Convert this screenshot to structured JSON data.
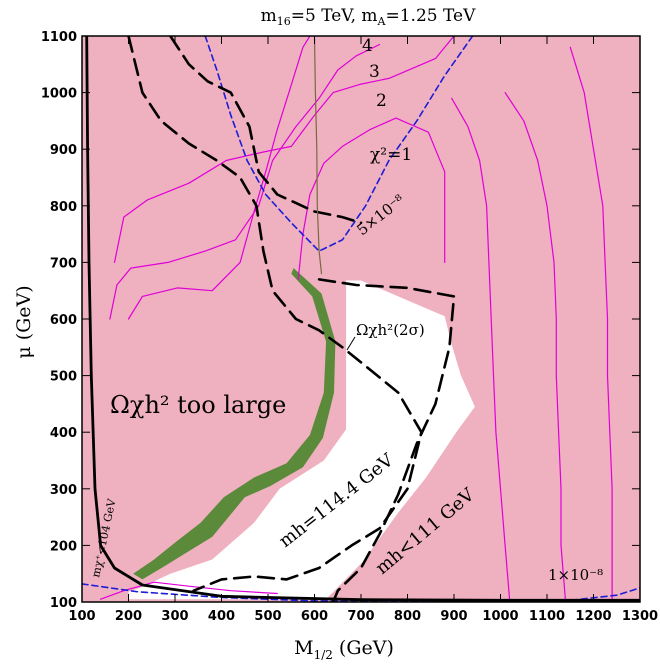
{
  "chart_data": {
    "type": "contour",
    "title": "m16=5 TeV,  mA=1.25 TeV",
    "title_parts": {
      "m16": "m",
      "m16_sub": "16",
      "m16_val": "=5 TeV,  ",
      "mA": "m",
      "mA_sub": "A",
      "mA_val": "=1.25 TeV"
    },
    "xlabel": "M1/2 (GeV)",
    "xlabel_parts": {
      "main": "M",
      "sub": "1/2",
      "unit": " (GeV)"
    },
    "ylabel": "μ (GeV)",
    "xlim": [
      100,
      1300
    ],
    "ylim": [
      100,
      1100
    ],
    "x_ticks": [
      100,
      200,
      300,
      400,
      500,
      600,
      700,
      800,
      900,
      1000,
      1100,
      1200,
      1300
    ],
    "y_ticks": [
      100,
      200,
      300,
      400,
      500,
      600,
      700,
      800,
      900,
      1000,
      1100
    ],
    "colors": {
      "excluded_region": "#efb0c0",
      "allowed_region": "#ffffff",
      "relic_band": "#5a8a3a",
      "chi2_contours": "#e000d8",
      "bsmumu_contours": "#1d1dd8",
      "higgs_contours": "#000000",
      "chargino_boundary": "#000000",
      "thin_line": "#7a6a40"
    },
    "regions": {
      "allowed_white": [
        [
          625,
          105
        ],
        [
          705,
          172
        ],
        [
          780,
          258
        ],
        [
          840,
          320
        ],
        [
          905,
          400
        ],
        [
          945,
          445
        ],
        [
          915,
          500
        ],
        [
          895,
          555
        ],
        [
          880,
          605
        ],
        [
          780,
          640
        ],
        [
          700,
          668
        ],
        [
          668,
          668
        ],
        [
          668,
          605
        ],
        [
          668,
          500
        ],
        [
          668,
          405
        ],
        [
          620,
          350
        ],
        [
          525,
          300
        ],
        [
          470,
          240
        ],
        [
          380,
          175
        ],
        [
          290,
          150
        ],
        [
          225,
          125
        ],
        [
          200,
          118
        ],
        [
          200,
          105
        ]
      ],
      "relic_band_outer": [
        [
          210,
          150
        ],
        [
          255,
          175
        ],
        [
          300,
          205
        ],
        [
          355,
          240
        ],
        [
          405,
          285
        ],
        [
          470,
          320
        ],
        [
          540,
          345
        ],
        [
          590,
          395
        ],
        [
          620,
          470
        ],
        [
          625,
          560
        ],
        [
          595,
          640
        ],
        [
          550,
          680
        ]
      ],
      "relic_band_inner": [
        [
          555,
          690
        ],
        [
          615,
          645
        ],
        [
          645,
          560
        ],
        [
          642,
          470
        ],
        [
          618,
          390
        ],
        [
          575,
          338
        ],
        [
          505,
          305
        ],
        [
          450,
          285
        ],
        [
          415,
          250
        ],
        [
          380,
          215
        ],
        [
          330,
          190
        ],
        [
          275,
          162
        ],
        [
          230,
          140
        ]
      ]
    },
    "series": [
      {
        "name": "χ²=1",
        "kind": "chi2",
        "points": [
          [
            565,
            670
          ],
          [
            575,
            750
          ],
          [
            590,
            820
          ],
          [
            620,
            875
          ],
          [
            660,
            905
          ],
          [
            720,
            935
          ],
          [
            775,
            955
          ],
          [
            845,
            930
          ],
          [
            880,
            860
          ],
          [
            880,
            700
          ]
        ]
      },
      {
        "name": "2",
        "kind": "chi2",
        "points": [
          [
            170,
            700
          ],
          [
            190,
            780
          ],
          [
            240,
            810
          ],
          [
            330,
            840
          ],
          [
            410,
            880
          ],
          [
            490,
            895
          ],
          [
            550,
            905
          ],
          [
            600,
            960
          ],
          [
            640,
            1000
          ],
          [
            700,
            1015
          ],
          [
            760,
            1025
          ],
          [
            860,
            1060
          ],
          [
            900,
            1100
          ]
        ]
      },
      {
        "name": "3",
        "kind": "chi2",
        "points": [
          [
            160,
            600
          ],
          [
            175,
            660
          ],
          [
            205,
            690
          ],
          [
            285,
            700
          ],
          [
            365,
            720
          ],
          [
            430,
            740
          ],
          [
            480,
            800
          ],
          [
            510,
            880
          ],
          [
            560,
            940
          ],
          [
            610,
            990
          ],
          [
            650,
            1040
          ],
          [
            690,
            1065
          ],
          [
            740,
            1085
          ]
        ]
      },
      {
        "name": "4",
        "kind": "chi2",
        "points": [
          [
            200,
            600
          ],
          [
            230,
            640
          ],
          [
            305,
            655
          ],
          [
            380,
            650
          ],
          [
            440,
            700
          ],
          [
            470,
            790
          ],
          [
            495,
            860
          ],
          [
            520,
            935
          ],
          [
            545,
            1000
          ],
          [
            575,
            1080
          ],
          [
            590,
            1100
          ]
        ]
      },
      {
        "name": "",
        "kind": "chi2",
        "points": [
          [
            1020,
            100
          ],
          [
            1010,
            200
          ],
          [
            1000,
            300
          ],
          [
            990,
            400
          ],
          [
            985,
            500
          ],
          [
            980,
            600
          ],
          [
            975,
            700
          ],
          [
            970,
            800
          ],
          [
            955,
            880
          ],
          [
            930,
            940
          ],
          [
            895,
            990
          ]
        ]
      },
      {
        "name": "",
        "kind": "chi2",
        "points": [
          [
            1140,
            100
          ],
          [
            1130,
            200
          ],
          [
            1130,
            300
          ],
          [
            1125,
            400
          ],
          [
            1120,
            500
          ],
          [
            1120,
            600
          ],
          [
            1115,
            700
          ],
          [
            1100,
            800
          ],
          [
            1080,
            880
          ],
          [
            1050,
            950
          ],
          [
            1010,
            1000
          ]
        ]
      },
      {
        "name": "",
        "kind": "chi2",
        "points": [
          [
            1240,
            100
          ],
          [
            1240,
            200
          ],
          [
            1240,
            300
          ],
          [
            1235,
            400
          ],
          [
            1230,
            500
          ],
          [
            1230,
            600
          ],
          [
            1225,
            700
          ],
          [
            1220,
            800
          ],
          [
            1200,
            900
          ],
          [
            1180,
            1000
          ],
          [
            1150,
            1080
          ]
        ]
      },
      {
        "name": "",
        "kind": "chi2",
        "points": [
          [
            140,
            105
          ],
          [
            190,
            120
          ],
          [
            255,
            135
          ],
          [
            330,
            128
          ],
          [
            420,
            120
          ],
          [
            520,
            115
          ]
        ]
      },
      {
        "name": "5×10⁻⁸",
        "kind": "bsmumu",
        "points": [
          [
            365,
            1100
          ],
          [
            390,
            1040
          ],
          [
            420,
            960
          ],
          [
            455,
            880
          ],
          [
            495,
            820
          ],
          [
            550,
            770
          ],
          [
            610,
            720
          ],
          [
            660,
            740
          ],
          [
            710,
            800
          ],
          [
            760,
            880
          ],
          [
            820,
            950
          ],
          [
            880,
            1030
          ],
          [
            940,
            1100
          ]
        ]
      },
      {
        "name": "1×10⁻⁸",
        "kind": "bsmumu",
        "points": [
          [
            100,
            132
          ],
          [
            220,
            118
          ],
          [
            400,
            108
          ],
          [
            600,
            102
          ],
          [
            800,
            101
          ],
          [
            1000,
            101
          ],
          [
            1150,
            103
          ],
          [
            1250,
            112
          ],
          [
            1300,
            125
          ]
        ]
      },
      {
        "name": "m_h=114.4 GeV",
        "kind": "higgs",
        "points": [
          [
            200,
            1100
          ],
          [
            230,
            1000
          ],
          [
            270,
            950
          ],
          [
            330,
            910
          ],
          [
            390,
            880
          ],
          [
            440,
            850
          ],
          [
            475,
            800
          ],
          [
            490,
            720
          ],
          [
            510,
            650
          ],
          [
            560,
            600
          ],
          [
            610,
            580
          ],
          [
            660,
            550
          ],
          [
            720,
            510
          ],
          [
            780,
            470
          ],
          [
            830,
            400
          ],
          [
            800,
            300
          ],
          [
            740,
            230
          ],
          [
            680,
            200
          ],
          [
            610,
            160
          ],
          [
            540,
            140
          ],
          [
            470,
            145
          ],
          [
            400,
            140
          ],
          [
            340,
            120
          ]
        ]
      },
      {
        "name": "",
        "kind": "higgs",
        "points": [
          [
            290,
            1100
          ],
          [
            330,
            1050
          ],
          [
            370,
            1020
          ],
          [
            420,
            1000
          ],
          [
            460,
            940
          ],
          [
            480,
            860
          ],
          [
            520,
            820
          ],
          [
            600,
            790
          ],
          [
            660,
            780
          ],
          [
            700,
            770
          ]
        ]
      },
      {
        "name": "",
        "kind": "higgs",
        "points": [
          [
            610,
            670
          ],
          [
            690,
            660
          ],
          [
            800,
            655
          ],
          [
            900,
            640
          ],
          [
            890,
            550
          ],
          [
            860,
            450
          ],
          [
            820,
            380
          ],
          [
            780,
            290
          ],
          [
            740,
            220
          ],
          [
            700,
            160
          ],
          [
            650,
            120
          ],
          [
            640,
            100
          ]
        ]
      },
      {
        "name": "m_h<111 GeV",
        "kind": "higgs_label_only",
        "points": []
      },
      {
        "name": "m_χ⁺<104 GeV",
        "kind": "chargino",
        "points": [
          [
            110,
            1100
          ],
          [
            112,
            900
          ],
          [
            115,
            700
          ],
          [
            120,
            500
          ],
          [
            128,
            300
          ],
          [
            140,
            200
          ],
          [
            170,
            160
          ],
          [
            230,
            130
          ],
          [
            400,
            110
          ],
          [
            700,
            104
          ],
          [
            1000,
            103
          ],
          [
            1300,
            103
          ]
        ]
      },
      {
        "name": "",
        "kind": "thin",
        "points": [
          [
            600,
            1100
          ],
          [
            602,
            1000
          ],
          [
            605,
            900
          ],
          [
            606,
            800
          ],
          [
            610,
            720
          ],
          [
            615,
            680
          ]
        ]
      }
    ],
    "annotations": {
      "too_large": "Ωχh² too large",
      "relic_2sigma": "Ωχh²(2σ)",
      "mh_114": "mh=114.4 GeV",
      "mh_111": "mh<111 GeV",
      "chargino": "mχ⁺<104 GeV",
      "chi2_1": "χ²=1",
      "chi2_2": "2",
      "chi2_3": "3",
      "chi2_4": "4",
      "bs_5e8": "5×10⁻⁸",
      "bs_1e8": "1×10⁻⁸"
    }
  }
}
